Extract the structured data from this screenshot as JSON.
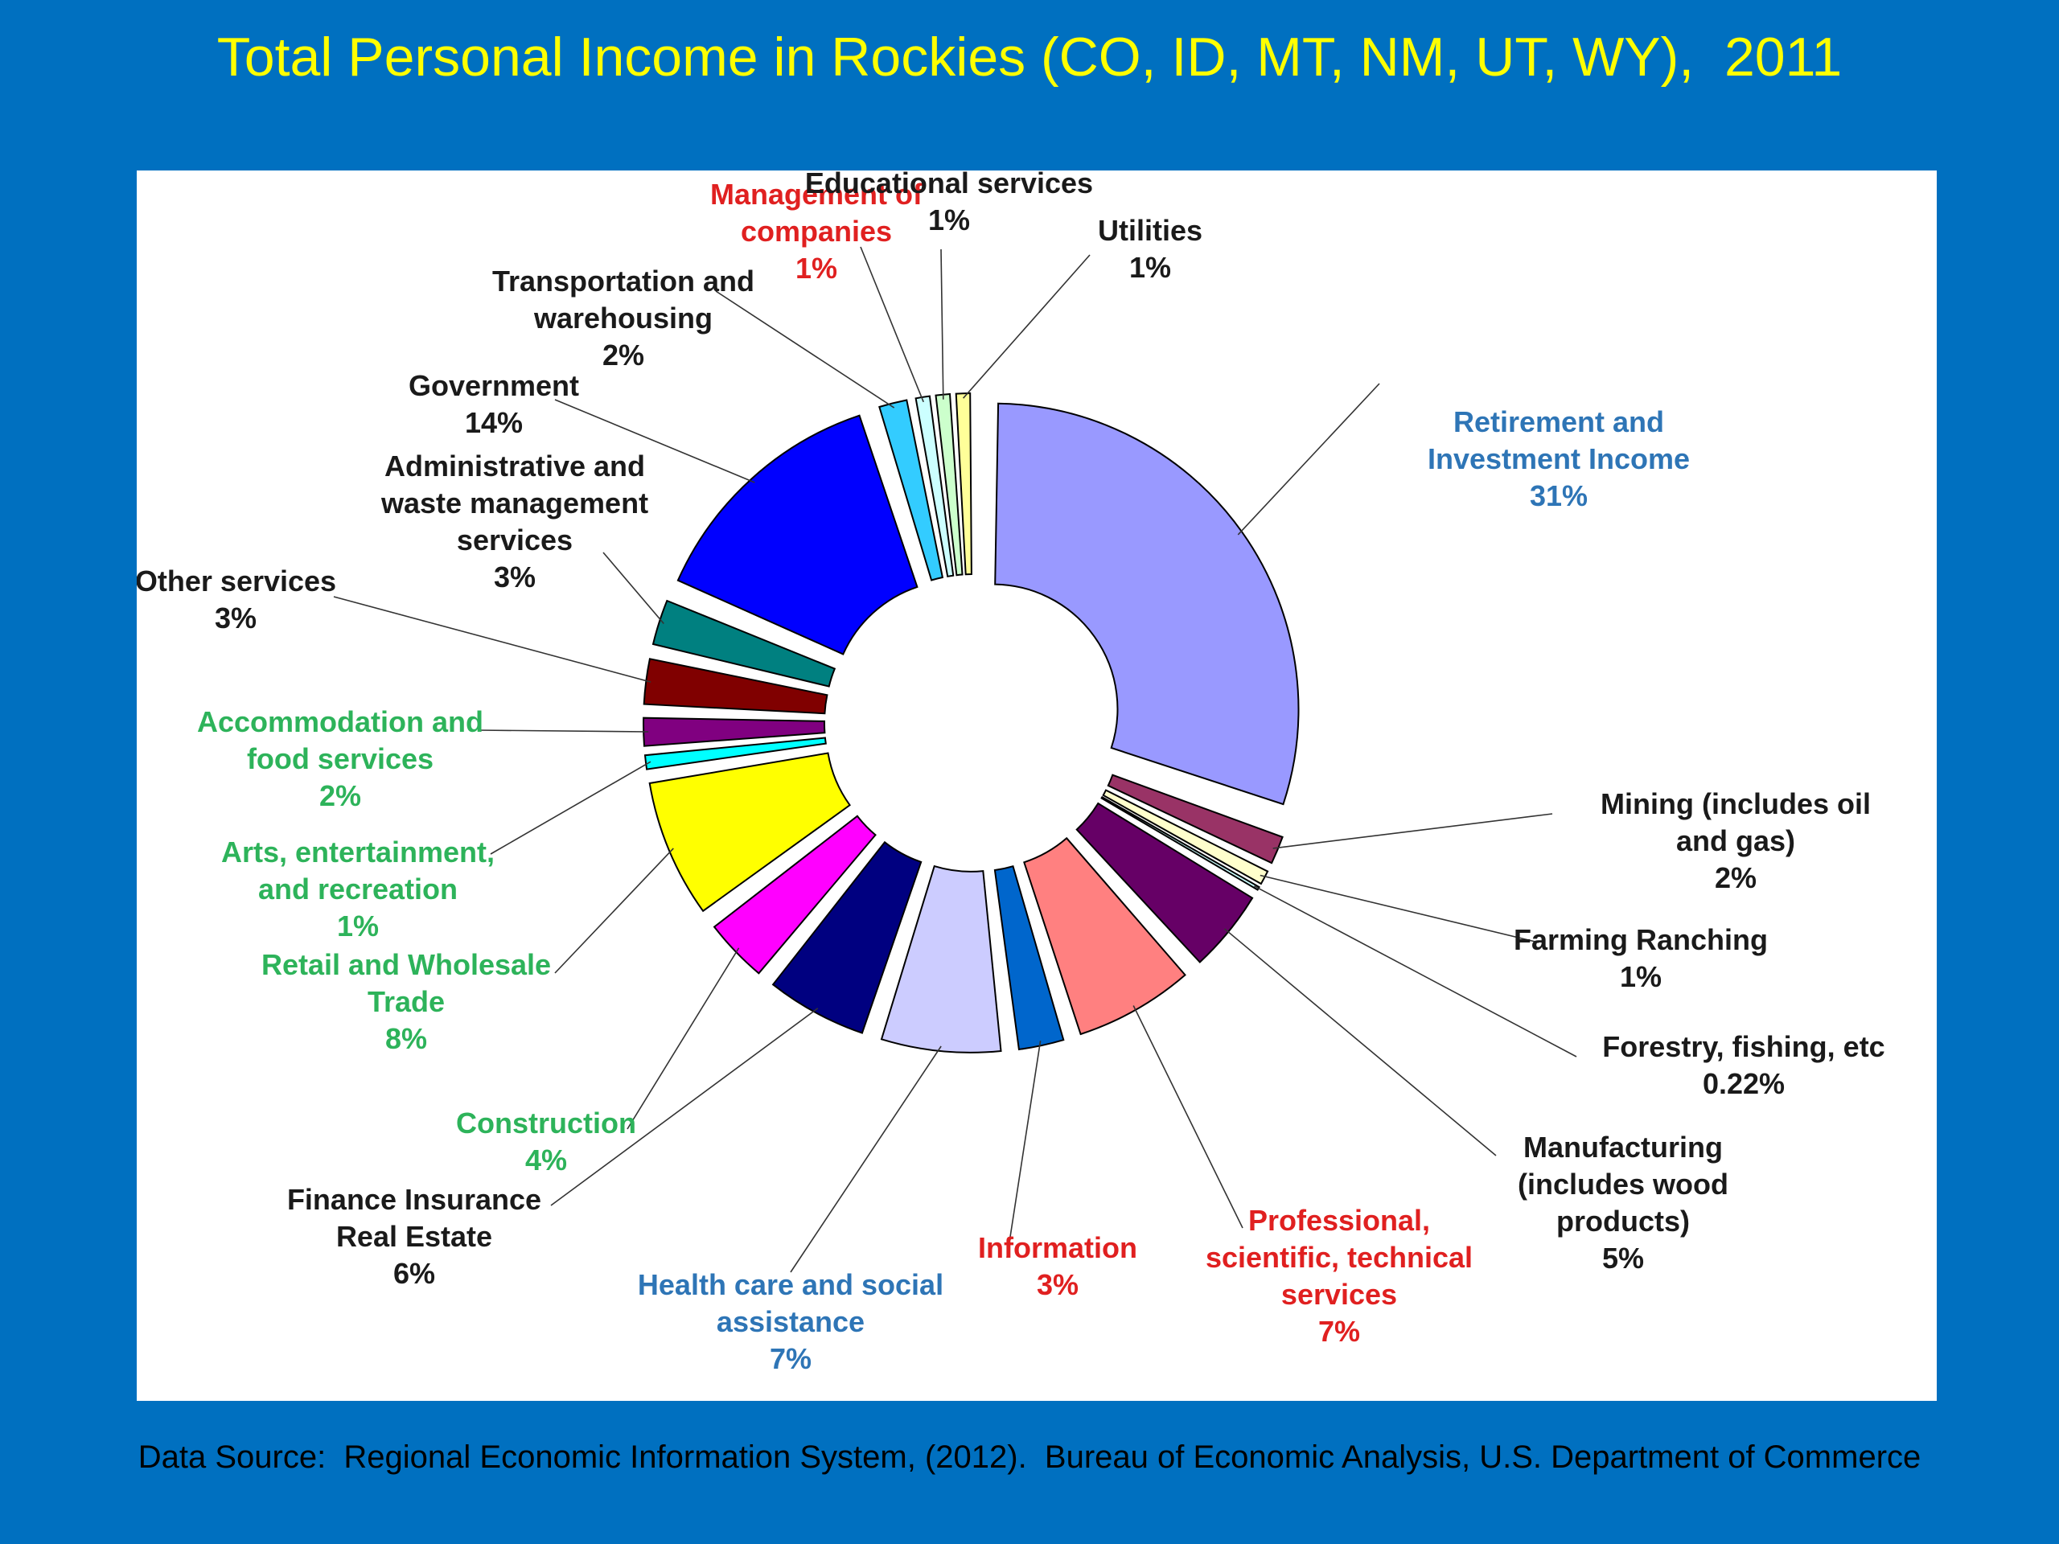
{
  "title": "Total Personal Income in Rockies (CO, ID, MT, NM, UT, WY),  2011",
  "source": "Data Source:  Regional Economic Information System, (2012).  Bureau of Economic Analysis, U.S. Department of Commerce",
  "chart_data": {
    "type": "pie",
    "title": "Total Personal Income in Rockies (CO, ID, MT, NM, UT, WY),  2011",
    "unit": "%",
    "slices": [
      {
        "label_lines": [
          "Retirement and",
          "Investment Income"
        ],
        "value_text": "31%",
        "value": 31,
        "color": "#9999FF",
        "label_color": "#2E75B6"
      },
      {
        "label_lines": [
          "Mining (includes oil",
          "and gas)"
        ],
        "value_text": "2%",
        "value": 2,
        "color": "#993366",
        "label_color": "#1A1A1A"
      },
      {
        "label_lines": [
          "Farming Ranching"
        ],
        "value_text": "1%",
        "value": 1,
        "color": "#FFFFCC",
        "label_color": "#1A1A1A"
      },
      {
        "label_lines": [
          "Forestry, fishing, etc"
        ],
        "value_text": "0.22%",
        "value": 0.22,
        "color": "#CCFFFF",
        "label_color": "#1A1A1A"
      },
      {
        "label_lines": [
          "Manufacturing",
          "(includes wood",
          "products)"
        ],
        "value_text": "5%",
        "value": 5,
        "color": "#660066",
        "label_color": "#1A1A1A"
      },
      {
        "label_lines": [
          "Professional,",
          "scientific, technical",
          "services"
        ],
        "value_text": "7%",
        "value": 7,
        "color": "#FF8080",
        "label_color": "#E02020"
      },
      {
        "label_lines": [
          "Information"
        ],
        "value_text": "3%",
        "value": 3,
        "color": "#0066CC",
        "label_color": "#E02020"
      },
      {
        "label_lines": [
          "Health care and social",
          "assistance"
        ],
        "value_text": "7%",
        "value": 7,
        "color": "#CCCCFF",
        "label_color": "#2E75B6"
      },
      {
        "label_lines": [
          "Finance Insurance",
          "Real Estate"
        ],
        "value_text": "6%",
        "value": 6,
        "color": "#000080",
        "label_color": "#1A1A1A"
      },
      {
        "label_lines": [
          "Construction"
        ],
        "value_text": "4%",
        "value": 4,
        "color": "#FF00FF",
        "label_color": "#2DB35A"
      },
      {
        "label_lines": [
          "Retail and Wholesale",
          "Trade"
        ],
        "value_text": "8%",
        "value": 8,
        "color": "#FFFF00",
        "label_color": "#2DB35A"
      },
      {
        "label_lines": [
          "Arts, entertainment,",
          "and recreation"
        ],
        "value_text": "1%",
        "value": 1,
        "color": "#00FFFF",
        "label_color": "#2DB35A"
      },
      {
        "label_lines": [
          "Accommodation  and",
          "food services"
        ],
        "value_text": "2%",
        "value": 2,
        "color": "#800080",
        "label_color": "#2DB35A"
      },
      {
        "label_lines": [
          "Other services"
        ],
        "value_text": "3%",
        "value": 3,
        "color": "#800000",
        "label_color": "#1A1A1A"
      },
      {
        "label_lines": [
          "Administrative  and",
          "waste management",
          "services"
        ],
        "value_text": "3%",
        "value": 3,
        "color": "#008080",
        "label_color": "#1A1A1A"
      },
      {
        "label_lines": [
          "Government"
        ],
        "value_text": "14%",
        "value": 14,
        "color": "#0000FF",
        "label_color": "#1A1A1A"
      },
      {
        "label_lines": [
          "Transportation and",
          "warehousing"
        ],
        "value_text": "2%",
        "value": 2,
        "color": "#33CCFF",
        "label_color": "#1A1A1A"
      },
      {
        "label_lines": [
          "Management of",
          "companies"
        ],
        "value_text": "1%",
        "value": 1,
        "color": "#CCFFFF",
        "label_color": "#E02020"
      },
      {
        "label_lines": [
          "Educational services"
        ],
        "value_text": "1%",
        "value": 1,
        "color": "#CCFFCC",
        "label_color": "#1A1A1A"
      },
      {
        "label_lines": [
          "Utilities"
        ],
        "value_text": "1%",
        "value": 1,
        "color": "#FFFF99",
        "label_color": "#1A1A1A"
      }
    ]
  }
}
